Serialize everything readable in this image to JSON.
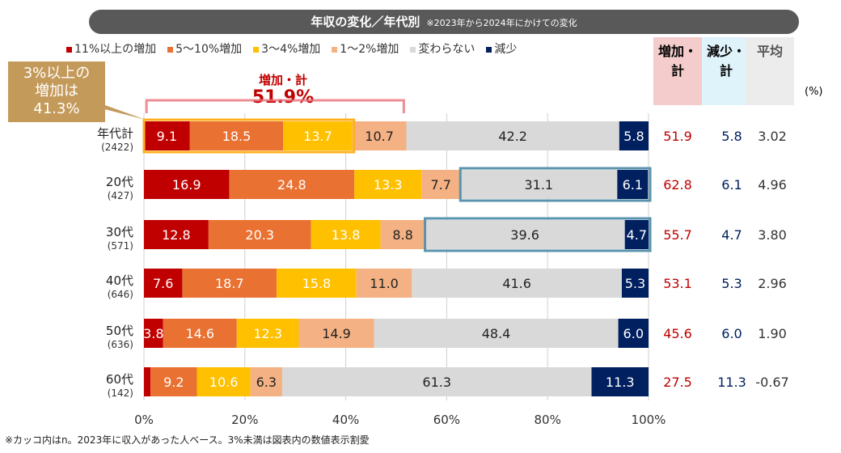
{
  "title": "年収の変化／年代別",
  "subtitle": "※2023年から2024年にかけての変化",
  "callout": [
    "3%以上の",
    "増加は",
    "41.3%"
  ],
  "bracket": {
    "label": "増加・計",
    "value": "51.9%"
  },
  "headers": {
    "inc": "増加・計",
    "dec": "減少・計",
    "avg": "平均",
    "unit": "(%)"
  },
  "note": "※カッコ内はn。2023年に収入があった人ベース。3%未満は図表内の数値表示割愛",
  "chart_data": {
    "type": "bar",
    "orientation": "horizontal",
    "stacked": true,
    "xlim": [
      0,
      100
    ],
    "xticks": [
      "0%",
      "20%",
      "40%",
      "60%",
      "80%",
      "100%"
    ],
    "categories": [
      {
        "name": "年代計",
        "n": "(2422)"
      },
      {
        "name": "20代",
        "n": "(427)"
      },
      {
        "name": "30代",
        "n": "(571)"
      },
      {
        "name": "40代",
        "n": "(646)"
      },
      {
        "name": "50代",
        "n": "(636)"
      },
      {
        "name": "60代",
        "n": "(142)"
      }
    ],
    "series": [
      {
        "name": "11%以上の増加",
        "color": "#c00000",
        "values": [
          9.1,
          16.9,
          12.8,
          7.6,
          3.8,
          1.3
        ]
      },
      {
        "name": "5～10%増加",
        "color": "#e97132",
        "values": [
          18.5,
          24.8,
          20.3,
          18.7,
          14.6,
          9.2
        ]
      },
      {
        "name": "3～4%増加",
        "color": "#ffc000",
        "values": [
          13.7,
          13.3,
          13.8,
          15.8,
          12.3,
          10.6
        ]
      },
      {
        "name": "1～2%増加",
        "color": "#f4b183",
        "values": [
          10.7,
          7.7,
          8.8,
          11.0,
          14.9,
          6.3
        ]
      },
      {
        "name": "変わらない",
        "color": "#d9d9d9",
        "values": [
          42.2,
          31.1,
          39.6,
          41.6,
          48.4,
          61.3
        ]
      },
      {
        "name": "減少",
        "color": "#002060",
        "values": [
          5.8,
          6.1,
          4.7,
          5.3,
          6.0,
          11.3
        ]
      }
    ],
    "summary": {
      "inc": [
        "51.9",
        "62.8",
        "55.7",
        "53.1",
        "45.6",
        "27.5"
      ],
      "dec": [
        "5.8",
        "6.1",
        "4.7",
        "5.3",
        "6.0",
        "11.3"
      ],
      "avg": [
        "3.02",
        "4.96",
        "3.80",
        "2.96",
        "1.90",
        "-0.67"
      ]
    }
  }
}
